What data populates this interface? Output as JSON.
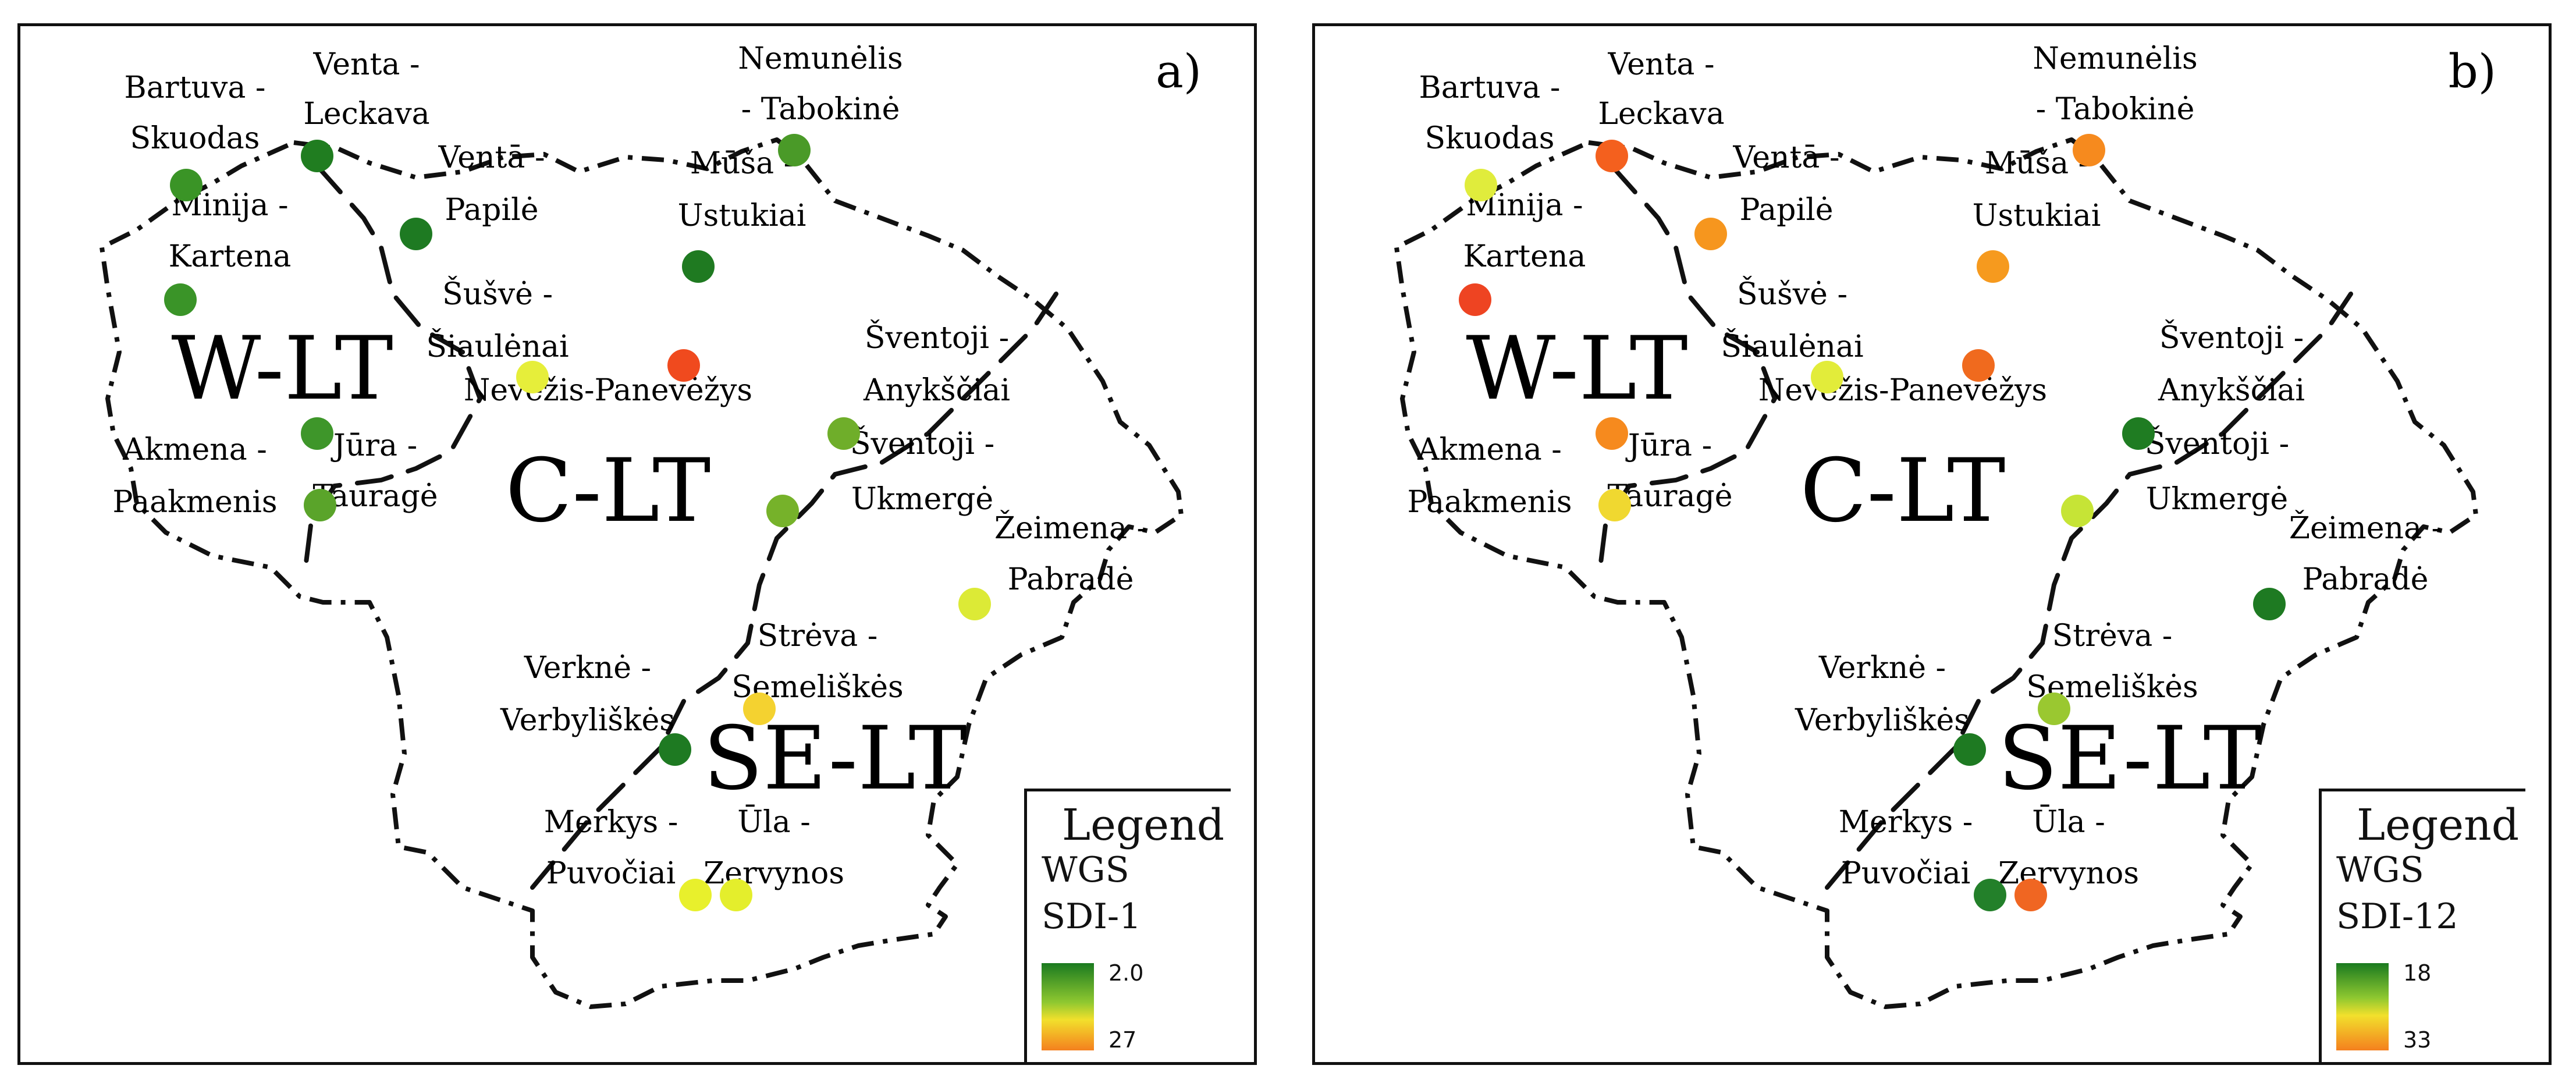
{
  "panels": [
    {
      "letter": "a)",
      "legend_title": "Legend",
      "legend_wgs": "WGS",
      "legend_index": "SDI-1",
      "legend_top_value": "2.0",
      "legend_bottom_value": "27",
      "sites": [
        {
          "name": "Bartuva-Skuodas",
          "color": "#3a9426"
        },
        {
          "name": "Venta-Leckava",
          "color": "#207d20"
        },
        {
          "name": "Venta-Papile",
          "color": "#1e7a22"
        },
        {
          "name": "Nemunelis-Tabokine",
          "color": "#4a9a28"
        },
        {
          "name": "Musa-Ustukiai",
          "color": "#1f7a21"
        },
        {
          "name": "Minija-Kartena",
          "color": "#3a9428"
        },
        {
          "name": "Susve-Siauleniai",
          "color": "#e6ee3a"
        },
        {
          "name": "Nevezis-Panevezys",
          "color": "#f04a1e"
        },
        {
          "name": "Sventoji-Anyksciai",
          "color": "#6fae2a"
        },
        {
          "name": "Akmena-Paakmenis",
          "color": "#3e962a"
        },
        {
          "name": "Jura-Taurage",
          "color": "#5aa42a"
        },
        {
          "name": "Sventoji-Ukmerge",
          "color": "#76b22a"
        },
        {
          "name": "Zeimena-Pabrade",
          "color": "#dcea36"
        },
        {
          "name": "Streva-Semeliskes",
          "color": "#f4d230"
        },
        {
          "name": "Verkne-Verbyliskes",
          "color": "#1e7a22"
        },
        {
          "name": "Merkys-Puvociai",
          "color": "#e8f02c"
        },
        {
          "name": "Ula-Zervynos",
          "color": "#e4ee2c"
        }
      ]
    },
    {
      "letter": "b)",
      "legend_title": "Legend",
      "legend_wgs": "WGS",
      "legend_index": "SDI-12",
      "legend_top_value": "18",
      "legend_bottom_value": "33",
      "sites": [
        {
          "name": "Bartuva-Skuodas",
          "color": "#e0ec3c"
        },
        {
          "name": "Venta-Leckava",
          "color": "#f4601e"
        },
        {
          "name": "Venta-Papile",
          "color": "#f6961e"
        },
        {
          "name": "Nemunelis-Tabokine",
          "color": "#f68a1e"
        },
        {
          "name": "Musa-Ustukiai",
          "color": "#f69a1e"
        },
        {
          "name": "Minija-Kartena",
          "color": "#ee4422"
        },
        {
          "name": "Susve-Siauleniai",
          "color": "#e2ec3a"
        },
        {
          "name": "Nevezis-Panevezys",
          "color": "#f06a1e"
        },
        {
          "name": "Sventoji-Anyksciai",
          "color": "#1f7c22"
        },
        {
          "name": "Akmena-Paakmenis",
          "color": "#f68a1e"
        },
        {
          "name": "Jura-Taurage",
          "color": "#f0d830"
        },
        {
          "name": "Sventoji-Ukmerge",
          "color": "#c6e436"
        },
        {
          "name": "Zeimena-Pabrade",
          "color": "#1e7a22"
        },
        {
          "name": "Streva-Semeliskes",
          "color": "#9ac830"
        },
        {
          "name": "Verkne-Verbyliskes",
          "color": "#1e7a22"
        },
        {
          "name": "Merkys-Puvociai",
          "color": "#23802a"
        },
        {
          "name": "Ula-Zervynos",
          "color": "#f06622"
        }
      ]
    }
  ],
  "labels": {
    "bartuva_1": "Bartuva -",
    "bartuva_2": "Skuodas",
    "venta1_1": "Venta -",
    "venta1_2": "Leckava",
    "venta2_1": "Ventā -",
    "venta2_2": "Papilė",
    "nemunelis_1": "Nemunėlis",
    "nemunelis_2": "- Tabokinė",
    "musa_1": "Mūša -",
    "musa_2": "Ustukiai",
    "minija_1": "Minija -",
    "minija_2": "Kartena",
    "susve_1": "Šušvė -",
    "susve_2": "Šiaulėnai",
    "nevezis": "Nevėžis-Panevėžys",
    "sventoji1_1": "Šventoji -",
    "sventoji1_2": "Anykščiai",
    "akmena_1": "Akmena -",
    "akmena_2": "Paakmenis",
    "jura_1": "Jūra -",
    "jura_2": "Tauragė",
    "sventoji2_1": "Šventoji -",
    "sventoji2_2": "Ukmergė",
    "zeimena_1": "Žeimena -",
    "zeimena_2": "Pabradė",
    "streva_1": "Strėva -",
    "streva_2": "Semeliškės",
    "verkne_1": "Verknė -",
    "verkne_2": "Verbyliškės",
    "merkys_1": "Merkys -",
    "merkys_2": "Puvočiai",
    "ula_1": "Ūla -",
    "ula_2": "Zervynos"
  },
  "regions": {
    "west": "W-LT",
    "central": "C-LT",
    "southeast": "SE-LT"
  },
  "colors": {
    "green": "#1e7a22",
    "yellow": "#e8f02c",
    "red": "#f04a1e",
    "border": "#111111"
  }
}
